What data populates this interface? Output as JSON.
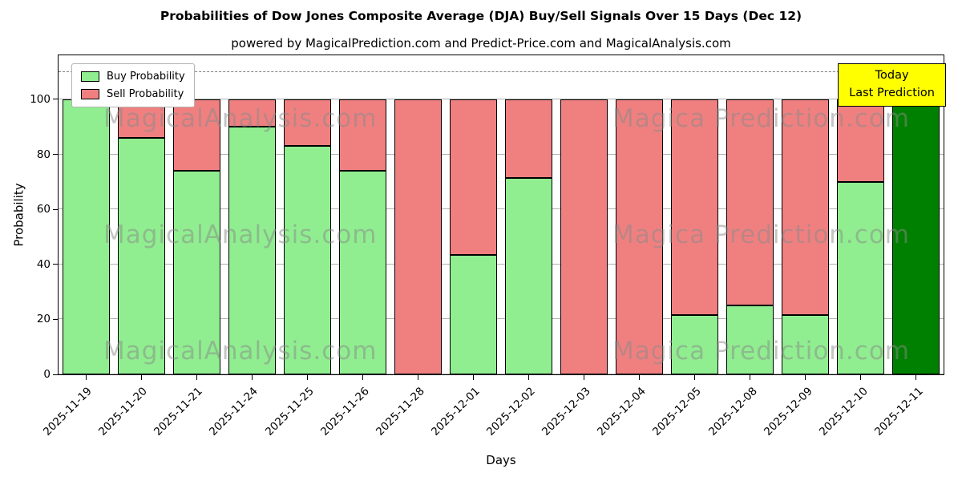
{
  "header": {
    "title": "Probabilities of Dow Jones Composite Average (DJA) Buy/Sell Signals Over 15 Days (Dec 12)",
    "subtitle": "powered by MagicalPrediction.com and Predict-Price.com and MagicalAnalysis.com"
  },
  "legend": {
    "buy_label": "Buy Probability",
    "sell_label": "Sell Probability"
  },
  "annotation": {
    "line1": "Today",
    "line2": "Last Prediction"
  },
  "axes": {
    "xlabel": "Days",
    "ylabel": "Probability",
    "yticks": [
      0,
      20,
      40,
      60,
      80,
      100
    ]
  },
  "watermarks": {
    "left": "MagicalAnalysis.com",
    "right": "Magica Prediction.com"
  },
  "colors": {
    "buy": "#90ee90",
    "sell": "#f08080",
    "today": "#008000",
    "today_box_bg": "#ffff00",
    "grid": "#b0b0b0",
    "dashed_line": "#7f7f7f"
  },
  "chart_data": {
    "type": "bar",
    "stacked": true,
    "title": "Probabilities of Dow Jones Composite Average (DJA) Buy/Sell Signals Over 15 Days (Dec 12)",
    "xlabel": "Days",
    "ylabel": "Probability",
    "ylim": [
      0,
      116
    ],
    "dashed_line_y": 110,
    "grid": true,
    "legend_position": "upper left",
    "highlight_last_bar": true,
    "categories": [
      "2025-11-19",
      "2025-11-20",
      "2025-11-21",
      "2025-11-24",
      "2025-11-25",
      "2025-11-26",
      "2025-11-28",
      "2025-12-01",
      "2025-12-02",
      "2025-12-03",
      "2025-12-04",
      "2025-12-05",
      "2025-12-08",
      "2025-12-09",
      "2025-12-10",
      "2025-12-11"
    ],
    "series": [
      {
        "name": "Buy Probability",
        "values": [
          100,
          86,
          74,
          90,
          83,
          74,
          0,
          43.5,
          71.5,
          0,
          0,
          21.5,
          25,
          21.5,
          70,
          100
        ]
      },
      {
        "name": "Sell Probability",
        "values": [
          0,
          14,
          26,
          10,
          17,
          26,
          100,
          56.5,
          28.5,
          100,
          100,
          78.5,
          75,
          78.5,
          30,
          0
        ]
      }
    ]
  }
}
